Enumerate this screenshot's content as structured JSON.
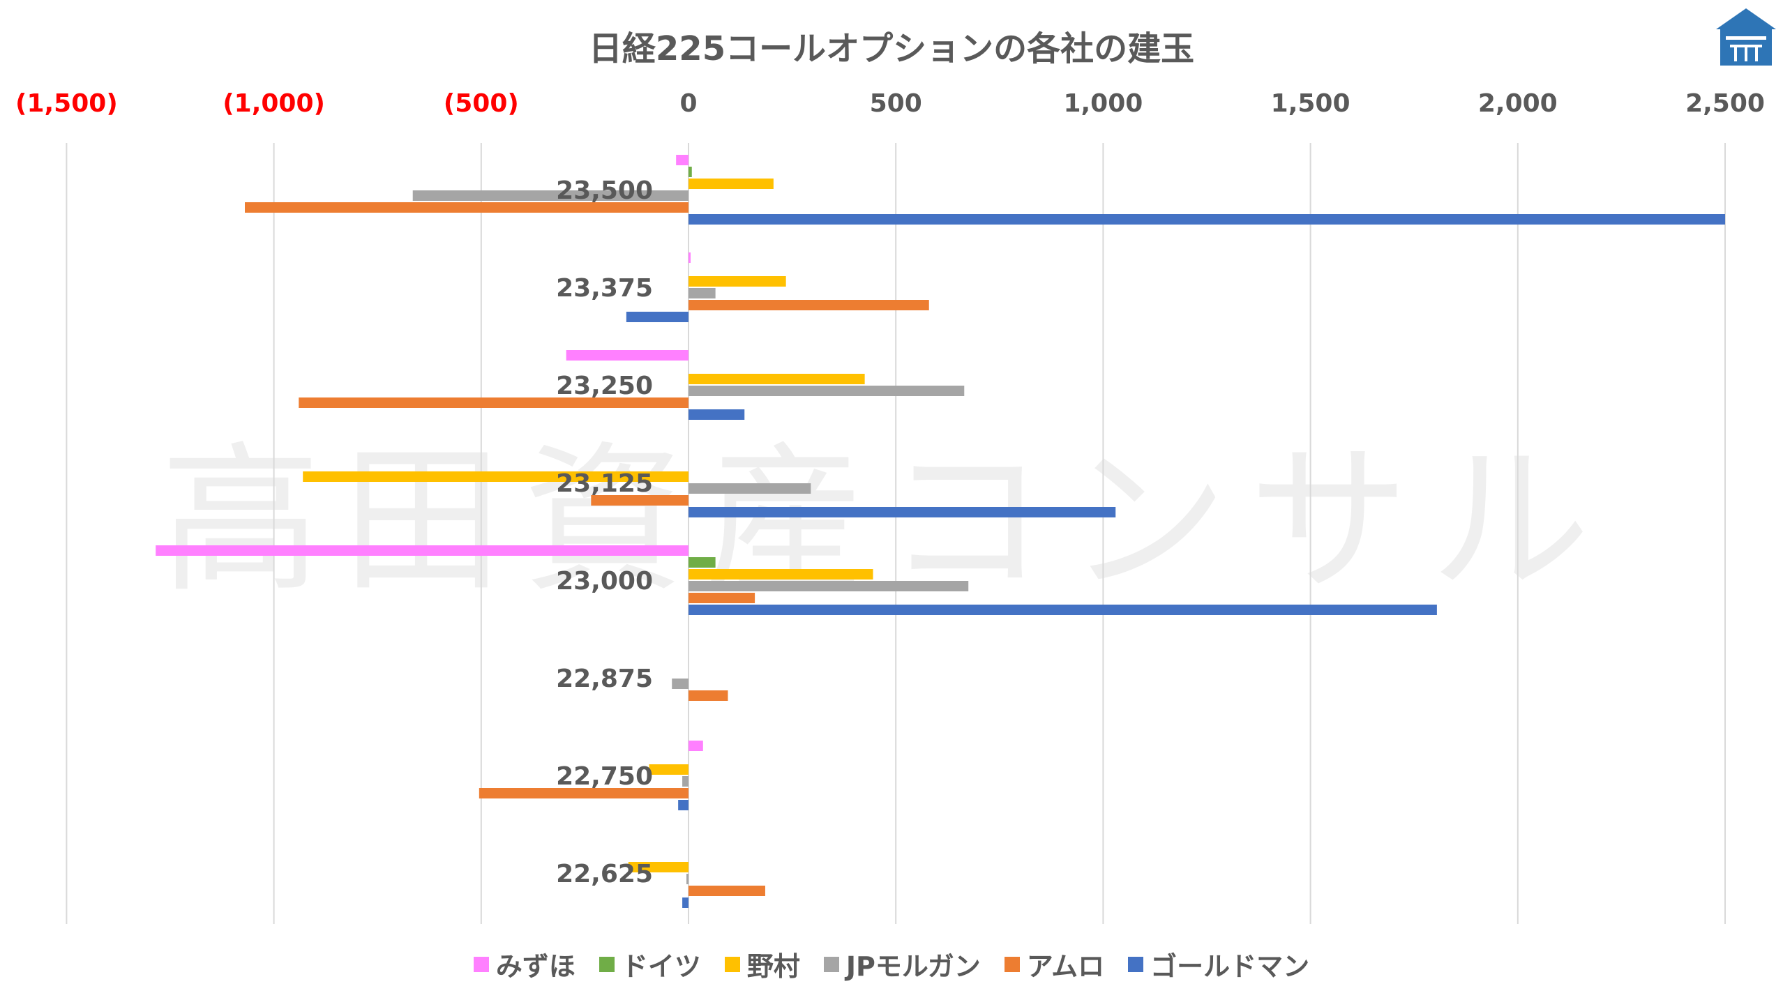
{
  "title": "日経225コールオプションの各社の建玉",
  "watermark": "高田資産コンサル",
  "logo": {
    "icon": "house-logo-icon",
    "color": "#2e75b6"
  },
  "colors": {
    "axis_positive": "#595959",
    "axis_negative": "#ff0000",
    "category_label": "#595959",
    "gridline": "#d9d9d9"
  },
  "chart_data": {
    "type": "bar",
    "orientation": "horizontal",
    "title": "日経225コールオプションの各社の建玉",
    "xlabel": "",
    "ylabel": "",
    "xlim": [
      -1500,
      2500
    ],
    "x_ticks": [
      -1500,
      -1000,
      -500,
      0,
      500,
      1000,
      1500,
      2000,
      2500
    ],
    "x_tick_labels": [
      "(1,500)",
      "(1,000)",
      "(500)",
      "0",
      "500",
      "1,000",
      "1,500",
      "2,000",
      "2,500"
    ],
    "x_axis_position": "top",
    "grid": "vertical",
    "legend_position": "bottom",
    "categories": [
      "23,500",
      "23,375",
      "23,250",
      "23,125",
      "23,000",
      "22,875",
      "22,750",
      "22,625"
    ],
    "series": [
      {
        "name": "みずほ",
        "color": "#ff80ff",
        "values": [
          -30,
          3,
          -295,
          0,
          -1285,
          0,
          35,
          0
        ]
      },
      {
        "name": "ドイツ",
        "color": "#70ad47",
        "values": [
          8,
          0,
          0,
          0,
          65,
          0,
          0,
          0
        ]
      },
      {
        "name": "野村",
        "color": "#ffc000",
        "values": [
          205,
          235,
          425,
          -930,
          445,
          0,
          -95,
          -145
        ]
      },
      {
        "name": "JPモルガン",
        "color": "#a5a5a5",
        "values": [
          -665,
          65,
          665,
          295,
          675,
          -40,
          -15,
          -5
        ]
      },
      {
        "name": "アムロ",
        "color": "#ed7d31",
        "values": [
          -1070,
          580,
          -940,
          -235,
          160,
          95,
          -505,
          185
        ]
      },
      {
        "name": "ゴールドマン",
        "color": "#4472c4",
        "values": [
          2500,
          -150,
          135,
          1030,
          1805,
          0,
          -25,
          -15
        ]
      }
    ]
  }
}
